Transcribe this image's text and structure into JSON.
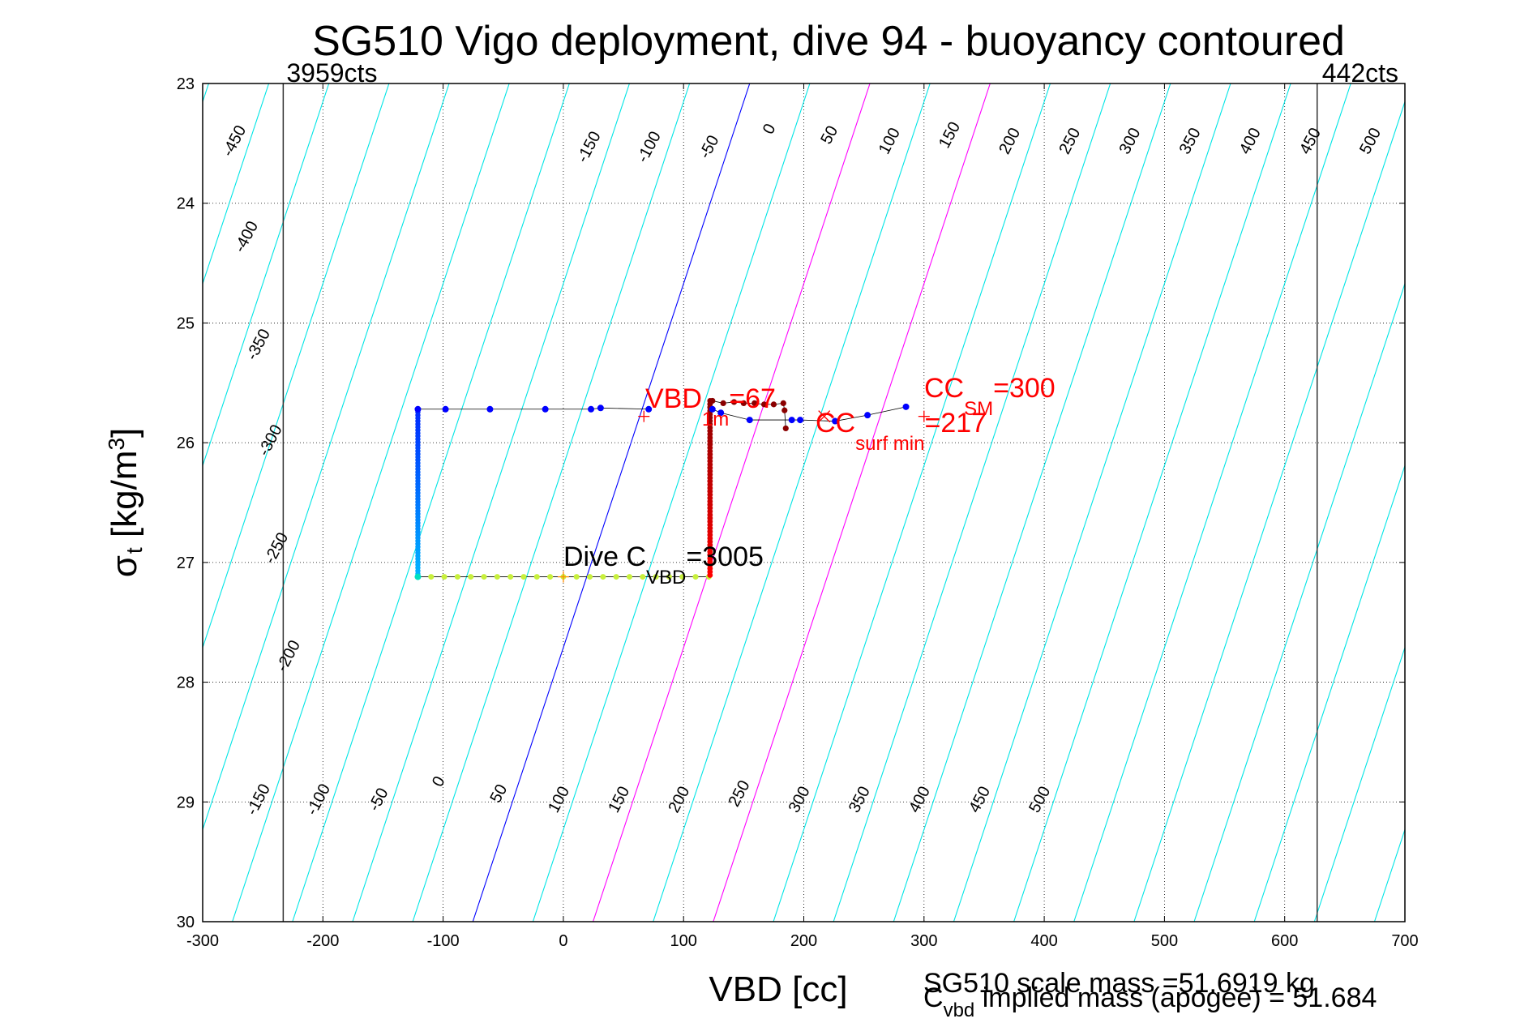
{
  "chart_data": {
    "type": "scatter",
    "title": "SG510 Vigo deployment, dive 94 - buoyancy contoured",
    "xlabel": "VBD [cc]",
    "ylabel_main": "σ",
    "ylabel_sub": "t",
    "ylabel_rest": " [kg/m",
    "ylabel_sup": "3",
    "ylabel_end": "]",
    "xlim": [
      -300,
      700
    ],
    "ylim": [
      23,
      30
    ],
    "y_reversed": true,
    "grid": "dotted",
    "xticks": [
      "-300",
      "-200",
      "-100",
      "0",
      "100",
      "200",
      "300",
      "400",
      "500",
      "600",
      "700"
    ],
    "yticks": [
      "23",
      "24",
      "25",
      "26",
      "27",
      "28",
      "29",
      "30"
    ],
    "contour_levels": [
      -450,
      -400,
      -350,
      -300,
      -250,
      -200,
      -150,
      -100,
      -50,
      0,
      50,
      100,
      150,
      200,
      250,
      300,
      350,
      400,
      450,
      500
    ],
    "contour_offsets_at_sigma23": [
      -495,
      -395,
      -295,
      -195,
      -95,
      5,
      105,
      205,
      305,
      405
    ],
    "contour_slope_cc_per_sigma": -33.3,
    "highlight_contours": [
      {
        "level": "0",
        "color": "#0000ff"
      },
      {
        "level": "100",
        "color": "#ff00ff"
      },
      {
        "level": "200",
        "color": "#ff00ff"
      }
    ],
    "top_labels": {
      "x_positions": [
        -255,
        -240,
        -225,
        -210,
        10,
        55,
        100,
        145,
        215,
        265,
        315,
        360,
        410,
        455,
        500,
        545,
        595,
        640,
        690,
        740
      ],
      "texts": [
        "-450",
        "-400",
        "-350",
        "-300",
        "-150",
        "-100",
        "-50",
        "0",
        "50",
        "100",
        "150",
        "200",
        "250",
        "300",
        "350",
        "400",
        "450",
        "500",
        "",
        ""
      ]
    },
    "contour_labels": [
      {
        "text": "-450",
        "vbd": -270,
        "sigma": 23.5
      },
      {
        "text": "-400",
        "vbd": -260,
        "sigma": 24.3
      },
      {
        "text": "-350",
        "vbd": -250,
        "sigma": 25.2
      },
      {
        "text": "-300",
        "vbd": -240,
        "sigma": 26.0
      },
      {
        "text": "-250",
        "vbd": -235,
        "sigma": 26.9
      },
      {
        "text": "-200",
        "vbd": -225,
        "sigma": 27.8
      },
      {
        "text": "-150",
        "vbd": 25,
        "sigma": 23.55
      },
      {
        "text": "-100",
        "vbd": 75,
        "sigma": 23.55
      },
      {
        "text": "-50",
        "vbd": 125,
        "sigma": 23.55
      },
      {
        "text": "0",
        "vbd": 175,
        "sigma": 23.4
      },
      {
        "text": "50",
        "vbd": 225,
        "sigma": 23.45
      },
      {
        "text": "100",
        "vbd": 275,
        "sigma": 23.5
      },
      {
        "text": "150",
        "vbd": 325,
        "sigma": 23.45
      },
      {
        "text": "200",
        "vbd": 375,
        "sigma": 23.5
      },
      {
        "text": "250",
        "vbd": 425,
        "sigma": 23.5
      },
      {
        "text": "300",
        "vbd": 475,
        "sigma": 23.5
      },
      {
        "text": "350",
        "vbd": 525,
        "sigma": 23.5
      },
      {
        "text": "400",
        "vbd": 575,
        "sigma": 23.5
      },
      {
        "text": "450",
        "vbd": 625,
        "sigma": 23.5
      },
      {
        "text": "500",
        "vbd": 675,
        "sigma": 23.5
      },
      {
        "text": "-150",
        "vbd": -250,
        "sigma": 29.0
      },
      {
        "text": "-100",
        "vbd": -200,
        "sigma": 29.0
      },
      {
        "text": "-50",
        "vbd": -150,
        "sigma": 29.0
      },
      {
        "text": "0",
        "vbd": -100,
        "sigma": 28.85
      },
      {
        "text": "50",
        "vbd": -50,
        "sigma": 28.95
      },
      {
        "text": "100",
        "vbd": 0,
        "sigma": 29.0
      },
      {
        "text": "150",
        "vbd": 50,
        "sigma": 29.0
      },
      {
        "text": "200",
        "vbd": 100,
        "sigma": 29.0
      },
      {
        "text": "250",
        "vbd": 150,
        "sigma": 28.95
      },
      {
        "text": "300",
        "vbd": 200,
        "sigma": 29.0
      },
      {
        "text": "350",
        "vbd": 250,
        "sigma": 29.0
      },
      {
        "text": "400",
        "vbd": 300,
        "sigma": 29.0
      },
      {
        "text": "450",
        "vbd": 350,
        "sigma": 29.0
      },
      {
        "text": "500",
        "vbd": 400,
        "sigma": 29.0
      }
    ],
    "vertical_limits": [
      {
        "vbd": -233,
        "label": "3959cts"
      },
      {
        "vbd": 627,
        "label": "442cts"
      }
    ],
    "dive_profile": {
      "color_top": "#0000ff",
      "points": [
        {
          "vbd": -121,
          "sigma": 25.72
        },
        {
          "vbd": -98,
          "sigma": 25.72
        },
        {
          "vbd": -61,
          "sigma": 25.72
        },
        {
          "vbd": -15,
          "sigma": 25.72
        },
        {
          "vbd": 23,
          "sigma": 25.72
        },
        {
          "vbd": 31,
          "sigma": 25.71
        },
        {
          "vbd": 71,
          "sigma": 25.72
        }
      ],
      "vertical_vbd": -121,
      "vertical_top_sigma": 25.72,
      "vertical_bottom_sigma": 27.1
    },
    "bottom_segment": {
      "vbd_start": -121,
      "vbd_end": 122,
      "sigma": 27.12,
      "color": "#c8f03c"
    },
    "climb_vertical": {
      "vbd": 122,
      "sigma_top": 25.65,
      "sigma_bottom": 27.12,
      "color": "#8b0000"
    },
    "climb_top": [
      {
        "vbd": 124,
        "sigma": 25.65
      },
      {
        "vbd": 133,
        "sigma": 25.67
      },
      {
        "vbd": 142,
        "sigma": 25.66
      },
      {
        "vbd": 150,
        "sigma": 25.67
      },
      {
        "vbd": 159,
        "sigma": 25.67
      },
      {
        "vbd": 167,
        "sigma": 25.68
      },
      {
        "vbd": 175,
        "sigma": 25.68
      },
      {
        "vbd": 183,
        "sigma": 25.67
      },
      {
        "vbd": 184,
        "sigma": 25.73
      },
      {
        "vbd": 185,
        "sigma": 25.88
      }
    ],
    "surface_track": [
      {
        "vbd": 124,
        "sigma": 25.72
      },
      {
        "vbd": 131,
        "sigma": 25.75
      },
      {
        "vbd": 155,
        "sigma": 25.81
      },
      {
        "vbd": 190,
        "sigma": 25.81
      },
      {
        "vbd": 197,
        "sigma": 25.81
      },
      {
        "vbd": 226,
        "sigma": 25.82
      },
      {
        "vbd": 253,
        "sigma": 25.77
      },
      {
        "vbd": 285,
        "sigma": 25.7
      }
    ],
    "markers": [
      {
        "vbd": 67,
        "sigma": 25.78,
        "symbol": "+",
        "color": "#ff0000"
      },
      {
        "vbd": 217,
        "sigma": 25.78,
        "symbol": "x",
        "color": "#ff0000"
      },
      {
        "vbd": 300,
        "sigma": 25.78,
        "symbol": "+",
        "color": "#ff0000"
      },
      {
        "vbd": 0,
        "sigma": 27.12,
        "symbol": "+",
        "color": "#ff8c00"
      }
    ],
    "annotations": {
      "vbd1m_main": "VBD",
      "vbd1m_sub": "1m",
      "vbd1m_val": "=67",
      "ccsm_main": "CC",
      "ccsm_sub": "SM",
      "ccsm_val": "=300",
      "ccsurf_main": "CC",
      "ccsurf_sub": "surf min",
      "ccsurf_val": "=217",
      "dive_main": "Dive C",
      "dive_sub": "VBD",
      "dive_val": "=3005"
    },
    "footer": {
      "line1": "SG510 scale mass =51.6919 kg",
      "line2_main": "C",
      "line2_sub": "vbd",
      "line2_rest": " implied mass (apogee) = 51.684"
    }
  }
}
